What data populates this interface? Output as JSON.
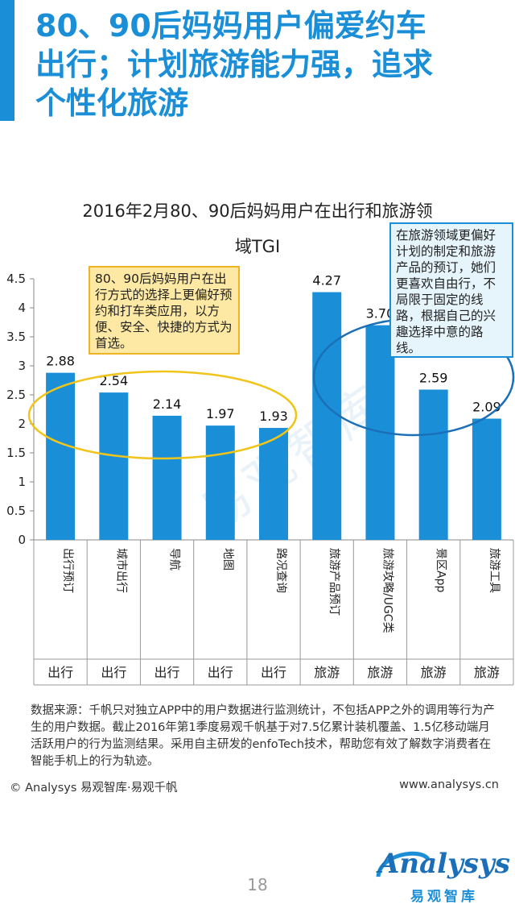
{
  "slide": {
    "title_lines": [
      "80、90后妈妈用户偏爱约车",
      "出行；计划旅游能力强，追求",
      "个性化旅游"
    ],
    "accent_color": "#1a8fd8"
  },
  "chart_data": {
    "type": "bar",
    "title_lines": [
      "2016年2月80、90后妈妈用户在出行和旅游领",
      "域TGI"
    ],
    "categories": [
      "出行预订",
      "城市出行",
      "导航",
      "地图",
      "路况查询",
      "旅游产品预订",
      "旅游攻略/UGC类",
      "景区App",
      "旅游工具"
    ],
    "groups": [
      "出行",
      "出行",
      "出行",
      "出行",
      "出行",
      "旅游",
      "旅游",
      "旅游",
      "旅游"
    ],
    "values": [
      2.88,
      2.54,
      2.14,
      1.97,
      1.93,
      4.27,
      3.7,
      2.59,
      2.09
    ],
    "value_labels": [
      "2.88",
      "2.54",
      "2.14",
      "1.97",
      "1.93",
      "4.27",
      "3.70",
      "2.59",
      "2.09"
    ],
    "ylim": [
      0,
      4.5
    ],
    "yticks": [
      "0",
      "0.5",
      "1",
      "1.5",
      "2",
      "2.5",
      "3",
      "3.5",
      "4",
      "4.5"
    ],
    "bar_color": "#1a8fd8",
    "grid": false
  },
  "annotations": {
    "travel_mode_note": "80、90后妈妈用户在出行方式的选择上更偏好预约和打车类应用，以方便、安全、快捷的方式为首选。",
    "tourism_note": "在旅游领域更偏好计划的制定和旅游产品的预订，她们更喜欢自由行，不局限于固定的线路，根据自己的兴趣选择中意的路线。",
    "travel_ellipse_color": "#f0c419",
    "tourism_ellipse_color": "#1a6fb8"
  },
  "footer": {
    "source": "数据来源：千帆只对独立APP中的用户数据进行监测统计，不包括APP之外的调用等行为产生的用户数据。截止2016年第1季度易观千帆基于对7.5亿累计装机覆盖、1.5亿移动端月活跃用户的行为监测结果。采用自主研发的enfoTech技术，帮助您有效了解数字消费者在智能手机上的行为轨迹。",
    "copyright": "© Analysys 易观智库·易观千帆",
    "website": "www.analysys.cn",
    "page_number": "18",
    "logo_name": "Analysys",
    "logo_sub": "易观智库",
    "watermark": "易观智库"
  }
}
